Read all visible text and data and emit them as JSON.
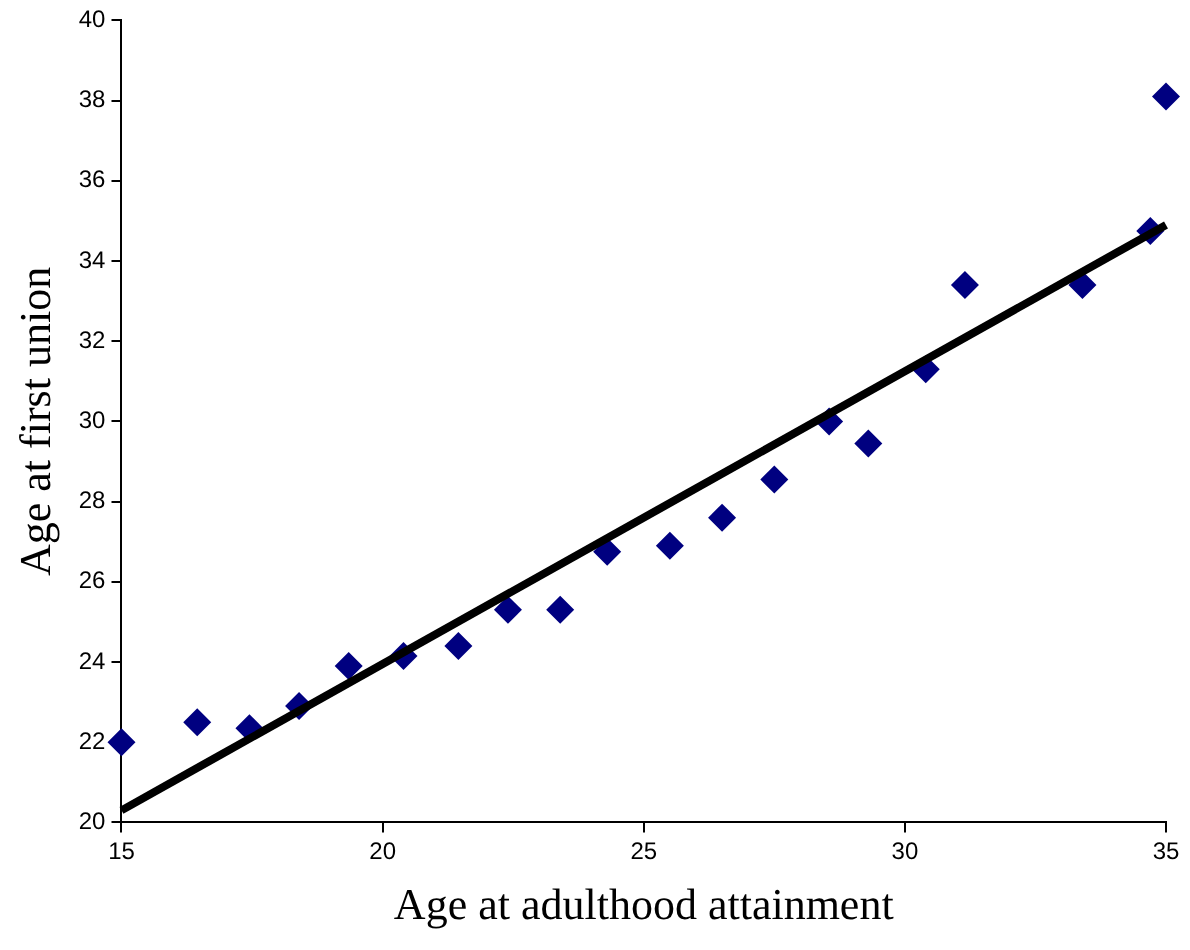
{
  "chart_data": {
    "type": "scatter",
    "xlabel": "Age at adulthood attainment",
    "ylabel": "Age at first union",
    "xlim": [
      15,
      35
    ],
    "xticks": [
      15,
      20,
      25,
      30,
      35
    ],
    "ylim": [
      20,
      40
    ],
    "yticks": [
      20,
      22,
      24,
      26,
      28,
      30,
      32,
      34,
      36,
      38,
      40
    ],
    "grid": false,
    "legend": false,
    "marker": "diamond",
    "series": [
      {
        "color": "#000080",
        "x": [
          15,
          16.45,
          17.45,
          18.4,
          19.35,
          20.4,
          21.45,
          22.4,
          23.4,
          24.3,
          25.5,
          26.5,
          27.5,
          28.55,
          29.3,
          30.4,
          31.15,
          33.4,
          34.7,
          35
        ],
        "values": [
          22.0,
          22.5,
          22.35,
          22.9,
          23.9,
          24.15,
          24.4,
          25.3,
          25.3,
          26.75,
          26.9,
          27.6,
          28.55,
          30.0,
          29.45,
          31.3,
          33.4,
          33.4,
          34.75,
          38.1
        ]
      },
      {
        "type": "line",
        "color": "#000000",
        "marker": "none",
        "x": [
          15,
          35
        ],
        "values": [
          20.3,
          34.9
        ]
      }
    ]
  }
}
